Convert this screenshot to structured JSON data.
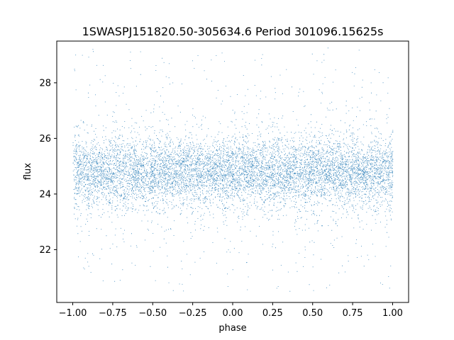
{
  "chart_data": {
    "type": "scatter",
    "title": "1SWASPJ151820.50-305634.6 Period 301096.15625s",
    "xlabel": "phase",
    "ylabel": "flux",
    "xlim": [
      -1.1,
      1.1
    ],
    "ylim": [
      20.1,
      29.5
    ],
    "x_ticks": [
      -1.0,
      -0.75,
      -0.5,
      -0.25,
      0.0,
      0.25,
      0.5,
      0.75,
      1.0
    ],
    "x_tick_labels": [
      "−1.00",
      "−0.75",
      "−0.50",
      "−0.25",
      "0.00",
      "0.25",
      "0.50",
      "0.75",
      "1.00"
    ],
    "y_ticks": [
      22,
      24,
      26,
      28
    ],
    "y_tick_labels": [
      "22",
      "24",
      "26",
      "28"
    ],
    "grid": false,
    "series": [
      {
        "color": "#1f77b4",
        "x_range": [
          -1.0,
          1.0
        ],
        "y_core_range": [
          23.5,
          26.2
        ],
        "y_median": 24.8,
        "y_extreme_range": [
          20.5,
          29.3
        ],
        "approx_points": 30000
      }
    ]
  }
}
